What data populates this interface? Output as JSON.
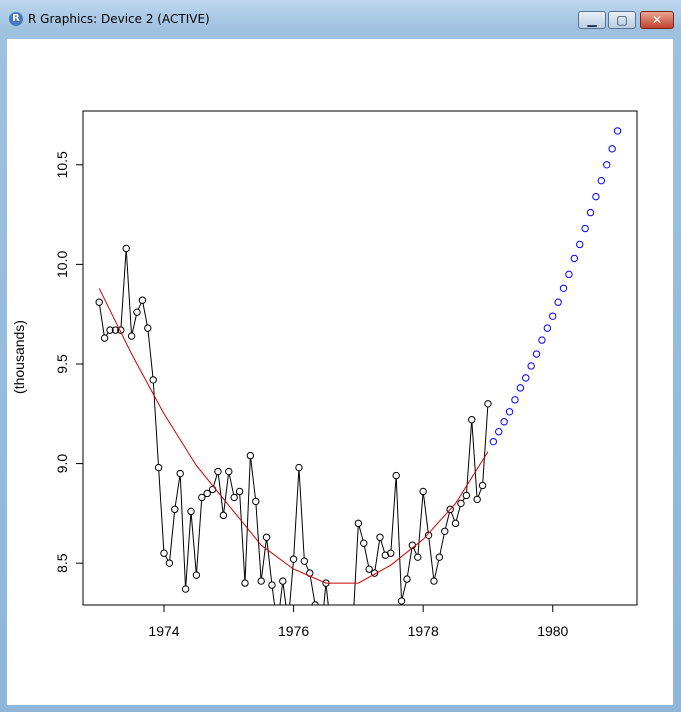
{
  "window": {
    "title": "R Graphics: Device 2 (ACTIVE)",
    "app_icon": "r-logo-icon",
    "controls": {
      "minimize_icon": "minimize-icon",
      "maximize_icon": "maximize-icon",
      "close_icon": "close-icon"
    }
  },
  "chart_data": {
    "type": "line",
    "title": "",
    "xlabel": "",
    "ylabel": "(thousands)",
    "xlim": [
      1972.75,
      1981.3
    ],
    "ylim": [
      8.29,
      10.77
    ],
    "x_ticks": [
      1974,
      1976,
      1978,
      1980
    ],
    "y_ticks": [
      8.5,
      9.0,
      9.5,
      10.0,
      10.5
    ],
    "x_tick_labels": [
      "1974",
      "1976",
      "1978",
      "1980"
    ],
    "y_tick_labels": [
      "8.5",
      "9.0",
      "9.5",
      "10.0",
      "10.5"
    ],
    "grid": false,
    "series": [
      {
        "role": "observed",
        "style": "line + open circles",
        "color": "#000000",
        "start": 1973.0,
        "step": 0.08333,
        "values": [
          9.81,
          9.63,
          9.67,
          9.67,
          9.67,
          10.08,
          9.64,
          9.76,
          9.82,
          9.68,
          9.42,
          8.98,
          8.55,
          8.5,
          8.77,
          8.95,
          8.37,
          8.76,
          8.44,
          8.83,
          8.85,
          8.87,
          8.96,
          8.74,
          8.96,
          8.83,
          8.86,
          8.4,
          9.04,
          8.81,
          8.41,
          8.63,
          8.39,
          8.18,
          8.41,
          8.2,
          8.52,
          8.98,
          8.51,
          8.45,
          8.29,
          8.12,
          8.4,
          8.14,
          8.1,
          8.05,
          8.15,
          8.2,
          8.7,
          8.6,
          8.47,
          8.45,
          8.63,
          8.54,
          8.55,
          8.94,
          8.31,
          8.42,
          8.59,
          8.53,
          8.86,
          8.64,
          8.41,
          8.53,
          8.66,
          8.77,
          8.7,
          8.8,
          8.84,
          9.22,
          8.82,
          8.89,
          9.3
        ]
      },
      {
        "role": "fitted",
        "style": "line",
        "color": "#cc0000",
        "x": [
          1973.0,
          1973.5,
          1974.0,
          1974.5,
          1975.0,
          1975.5,
          1976.0,
          1976.5,
          1977.0,
          1977.5,
          1978.0,
          1978.5,
          1979.0
        ],
        "values": [
          9.88,
          9.55,
          9.25,
          8.99,
          8.79,
          8.59,
          8.47,
          8.4,
          8.4,
          8.49,
          8.62,
          8.8,
          9.06
        ]
      },
      {
        "role": "forecast",
        "style": "open circles",
        "color": "#0000ff",
        "start": 1979.083,
        "step": 0.08333,
        "values": [
          9.11,
          9.16,
          9.21,
          9.26,
          9.32,
          9.38,
          9.43,
          9.49,
          9.55,
          9.62,
          9.68,
          9.74,
          9.81,
          9.88,
          9.95,
          10.03,
          10.1,
          10.18,
          10.26,
          10.34,
          10.42,
          10.5,
          10.58,
          10.67
        ]
      }
    ]
  }
}
